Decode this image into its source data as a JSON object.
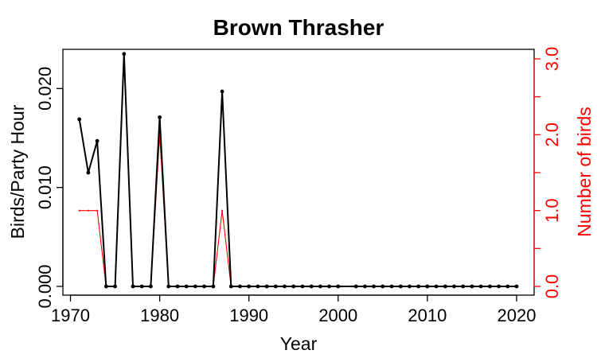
{
  "chart_data": {
    "type": "line",
    "title": "Brown Thrasher",
    "xlabel": "Year",
    "ylabel": "Birds/Party Hour",
    "y2label": "Number of birds",
    "xlim": [
      1970,
      2020
    ],
    "ylim": [
      0,
      0.023
    ],
    "y2lim": [
      0,
      3
    ],
    "xticks": [
      1970,
      1980,
      1990,
      2000,
      2010,
      2020
    ],
    "yticks": [
      0,
      0.01,
      0.02
    ],
    "ytick_labels": [
      "0.000",
      "0.010",
      "0.020"
    ],
    "y2ticks": [
      0,
      0.5,
      1,
      1.5,
      2,
      2.5,
      3
    ],
    "y2tick_labels": [
      "0.0",
      "",
      "1.0",
      "",
      "2.0",
      "",
      "3.0"
    ],
    "grid": false,
    "colors": {
      "primary": "#000000",
      "secondary": "#ff0000"
    },
    "series": [
      {
        "axis": "left",
        "style": "line-points",
        "x": [
          1971,
          1972,
          1973,
          1974,
          1975,
          1976,
          1977,
          1978,
          1979,
          1980,
          1981,
          1982,
          1983,
          1984,
          1985,
          1986,
          1987,
          1988,
          1989,
          1990,
          1991,
          1992,
          1993,
          1994,
          1995,
          1996,
          1997,
          1998,
          1999,
          2000,
          2002,
          2003,
          2004,
          2005,
          2006,
          2007,
          2008,
          2009,
          2010,
          2011,
          2012,
          2013,
          2014,
          2015,
          2016,
          2017,
          2018,
          2019,
          2020
        ],
        "values": [
          0.0169,
          0.0115,
          0.0147,
          0,
          0,
          0.0235,
          0,
          0,
          0,
          0.0171,
          0,
          0,
          0,
          0,
          0,
          0,
          0.0197,
          0,
          0,
          0,
          0,
          0,
          0,
          0,
          0,
          0,
          0,
          0,
          0,
          0,
          0,
          0,
          0,
          0,
          0,
          0,
          0,
          0,
          0,
          0,
          0,
          0,
          0,
          0,
          0,
          0,
          0,
          0,
          0
        ]
      },
      {
        "axis": "right",
        "style": "line",
        "x": [
          1971,
          1972,
          1973,
          1974,
          1975,
          1976,
          1977,
          1978,
          1979,
          1980,
          1981,
          1982,
          1983,
          1984,
          1985,
          1986,
          1987,
          1988,
          1989,
          1990,
          1991,
          1992,
          1993,
          1994,
          1995,
          1996,
          1997,
          1998,
          1999,
          2000,
          2002,
          2003,
          2004,
          2005,
          2006,
          2007,
          2008,
          2009,
          2010,
          2011,
          2012,
          2013,
          2014,
          2015,
          2016,
          2017,
          2018,
          2019,
          2020
        ],
        "values": [
          1,
          1,
          1,
          0,
          0,
          3,
          0,
          0,
          0,
          2,
          0,
          0,
          0,
          0,
          0,
          0,
          1,
          0,
          0,
          0,
          0,
          0,
          0,
          0,
          0,
          0,
          0,
          0,
          0,
          0,
          0,
          0,
          0,
          0,
          0,
          0,
          0,
          0,
          0,
          0,
          0,
          0,
          0,
          0,
          0,
          0,
          0,
          0,
          0
        ]
      }
    ]
  }
}
